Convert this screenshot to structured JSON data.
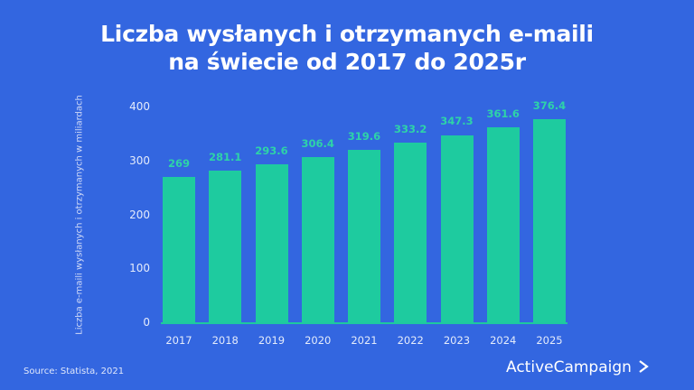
{
  "title_line1": "Liczba wysłanych i otrzymanych e-maili",
  "title_line2": "na świecie od 2017 do 2025r",
  "source": "Source: Statista, 2021",
  "brand": "ActiveCampaign",
  "brand_icon": "chevron-right-icon",
  "colors": {
    "background": "#3366e0",
    "bar": "#1ecb9f",
    "text": "#ffffff"
  },
  "chart_data": {
    "type": "bar",
    "title": "Liczba wysłanych i otrzymanych e-maili na świecie od 2017 do 2025r",
    "xlabel": "",
    "ylabel": "Liczba e-maili wysłanych i otrzymanych w miliardach",
    "categories": [
      "2017",
      "2018",
      "2019",
      "2020",
      "2021",
      "2022",
      "2023",
      "2024",
      "2025"
    ],
    "values": [
      269,
      281.1,
      293.6,
      306.4,
      319.6,
      333.2,
      347.3,
      361.6,
      376.4
    ],
    "value_labels": [
      "269",
      "281.1",
      "293.6",
      "306.4",
      "319.6",
      "333.2",
      "347.3",
      "361.6",
      "376.4"
    ],
    "yticks": [
      "0",
      "100",
      "200",
      "300",
      "400"
    ],
    "ylim": [
      0,
      400
    ],
    "grid": false,
    "legend": null
  }
}
